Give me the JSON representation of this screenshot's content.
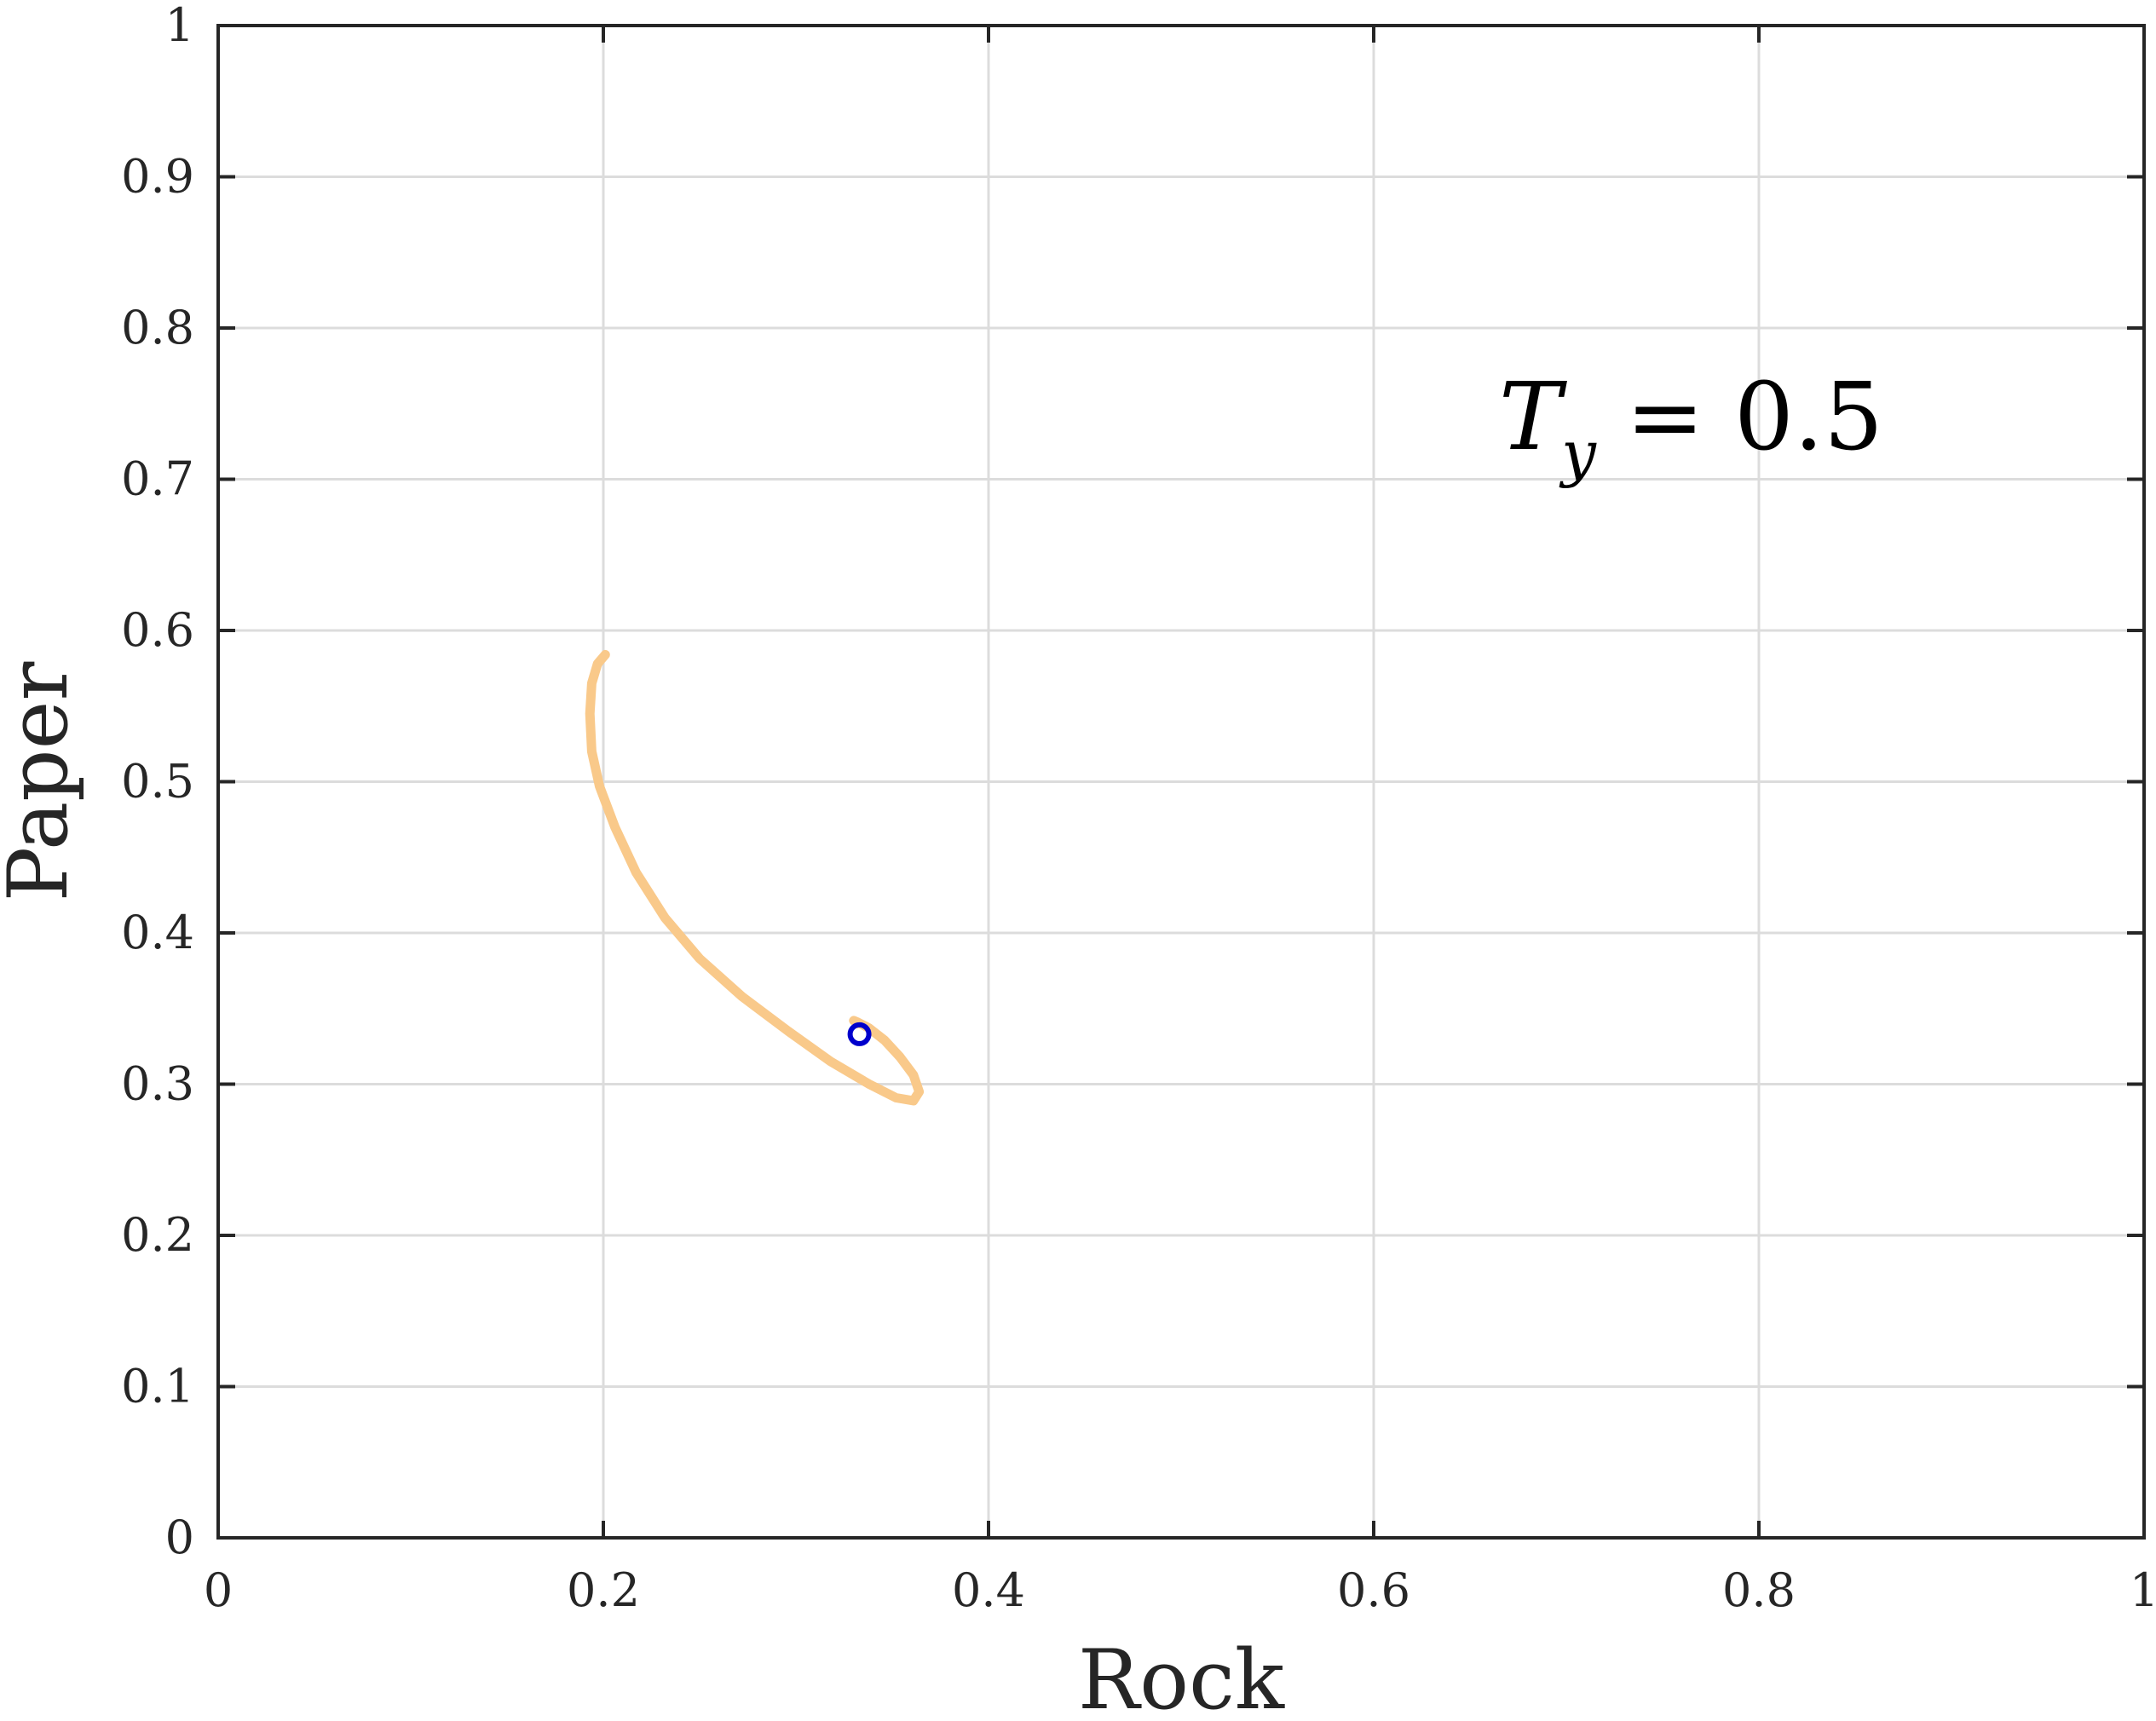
{
  "chart_data": {
    "type": "line",
    "xlabel": "Rock",
    "ylabel": "Paper",
    "xlim": [
      0,
      1
    ],
    "ylim": [
      0,
      1
    ],
    "xticks": [
      0,
      0.2,
      0.4,
      0.6,
      0.8,
      1
    ],
    "xtick_labels": [
      "0",
      "0.2",
      "0.4",
      "0.6",
      "0.8",
      "1"
    ],
    "yticks": [
      0,
      0.1,
      0.2,
      0.3,
      0.4,
      0.5,
      0.6,
      0.7,
      0.8,
      0.9,
      1
    ],
    "ytick_labels": [
      "0",
      "0.1",
      "0.2",
      "0.3",
      "0.4",
      "0.5",
      "0.6",
      "0.7",
      "0.8",
      "0.9",
      "1"
    ],
    "grid": true,
    "annotation": {
      "var": "T",
      "sub": "y",
      "rest": " = 0.5"
    },
    "series": [
      {
        "color": "#f9c98a",
        "x": [
          0.201,
          0.197,
          0.194,
          0.193,
          0.194,
          0.198,
          0.206,
          0.217,
          0.232,
          0.25,
          0.272,
          0.296,
          0.318,
          0.338,
          0.352,
          0.361,
          0.364,
          0.361,
          0.354,
          0.346,
          0.338,
          0.332,
          0.33,
          0.332
        ],
        "y": [
          0.584,
          0.578,
          0.565,
          0.545,
          0.52,
          0.497,
          0.47,
          0.44,
          0.41,
          0.383,
          0.358,
          0.335,
          0.315,
          0.3,
          0.291,
          0.289,
          0.295,
          0.306,
          0.318,
          0.329,
          0.337,
          0.341,
          0.342,
          0.34
        ]
      },
      {
        "color": "#0000cc",
        "marker": "circle",
        "x": [
          0.333
        ],
        "y": [
          0.333
        ]
      }
    ]
  }
}
